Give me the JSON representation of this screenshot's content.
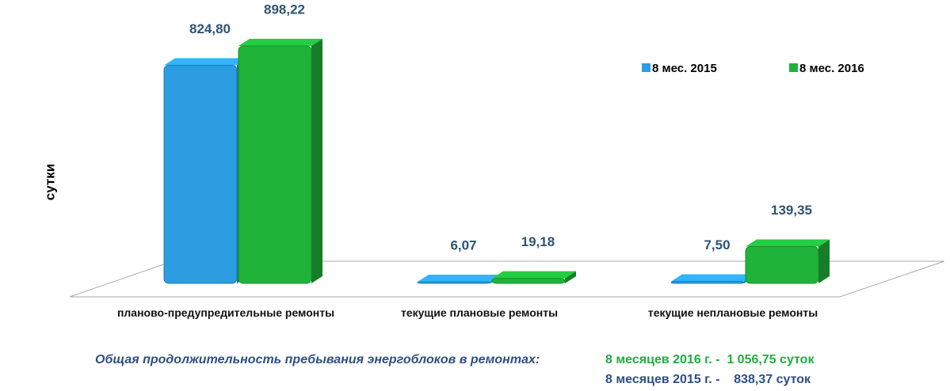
{
  "chart_data": {
    "type": "bar",
    "y_label": "сутки",
    "categories": [
      "планово-предупредительные ремонты",
      "текущие плановые ремонты",
      "текущие неплановые ремонты"
    ],
    "series": [
      {
        "name": "8 мес. 2015",
        "color": "#2b9de0",
        "values": [
          824.8,
          6.07,
          7.5
        ],
        "value_labels": [
          "824,80",
          "6,07",
          "7,50"
        ]
      },
      {
        "name": "8 мес. 2016",
        "color": "#1fb33a",
        "values": [
          898.22,
          19.18,
          139.35
        ],
        "value_labels": [
          "898,22",
          "19,18",
          "139,35"
        ]
      }
    ],
    "notes": [
      "Общая продолжительность пребывания энергоблоков в ремонтах:",
      "8 месяцев 2016 г. -  1 056,75 суток",
      "8 месяцев 2015 г. -    838,37 суток"
    ]
  }
}
